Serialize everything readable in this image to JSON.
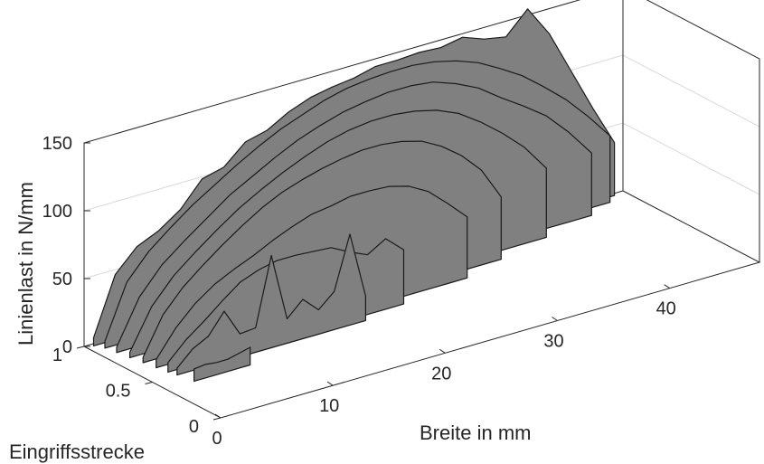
{
  "chart_data": {
    "type": "3d-ribbon",
    "xlabel": "Breite in mm",
    "ylabel": "Eingriffsstrecke",
    "zlabel": "Linienlast in N/mm",
    "x_ticks": [
      "0",
      "10",
      "20",
      "30",
      "40"
    ],
    "y_ticks": [
      "0",
      "0.5",
      "1"
    ],
    "z_ticks": [
      "0",
      "50",
      "100",
      "150"
    ],
    "xlim": [
      0,
      48
    ],
    "ylim": [
      0,
      1
    ],
    "zlim": [
      0,
      150
    ],
    "grid": "z-only",
    "colors": {
      "surface": "#808080",
      "edge": "#1a1a1a",
      "axes": "#262626",
      "grid": "#d9d9d9"
    },
    "series": [
      {
        "y": 0.4,
        "x_start": 2.5,
        "x_end": 7.5,
        "values": [
          9,
          10,
          9,
          9,
          11,
          13
        ]
      },
      {
        "y": 0.5,
        "x_start": 2.2,
        "x_end": 19.0,
        "values": [
          5,
          16,
          22,
          37,
          17,
          18,
          68,
          18,
          29,
          18,
          28,
          67,
          18
        ]
      },
      {
        "y": 0.55,
        "x_start": 2.0,
        "x_end": 23.0,
        "values": [
          7,
          20,
          30,
          41,
          51,
          56,
          59,
          59,
          58,
          57,
          50,
          44,
          52,
          40
        ]
      },
      {
        "y": 0.62,
        "x_start": 1.8,
        "x_end": 29.5,
        "values": [
          6,
          25,
          39,
          49,
          56,
          62,
          69,
          75,
          80,
          82,
          85,
          85,
          84,
          80,
          72,
          59,
          45
        ]
      },
      {
        "y": 0.7,
        "x_start": 1.6,
        "x_end": 33.5,
        "values": [
          4,
          31,
          47,
          59,
          70,
          80,
          89,
          96,
          101,
          105,
          108,
          110,
          110,
          108,
          104,
          96,
          85,
          70,
          46
        ]
      },
      {
        "y": 0.78,
        "x_start": 1.4,
        "x_end": 38.5,
        "values": [
          4,
          33,
          51,
          64,
          76,
          87,
          96,
          104,
          111,
          117,
          121,
          123,
          123,
          121,
          117,
          110,
          99,
          86,
          71,
          51
        ]
      },
      {
        "y": 0.86,
        "x_start": 1.2,
        "x_end": 43.5,
        "values": [
          4,
          36,
          55,
          68,
          80,
          92,
          101,
          110,
          118,
          124,
          129,
          132,
          134,
          134,
          132,
          126,
          118,
          106,
          95,
          83,
          66,
          46
        ]
      },
      {
        "y": 0.93,
        "x_start": 1.0,
        "x_end": 46.0,
        "values": [
          5,
          44,
          62,
          75,
          87,
          97,
          107,
          116,
          124,
          130,
          136,
          140,
          142,
          143,
          143,
          141,
          137,
          131,
          122,
          112,
          99,
          85,
          68,
          49
        ]
      },
      {
        "y": 0.98,
        "x_start": 0.6,
        "x_end": 47.0,
        "values": [
          6,
          48,
          64,
          71,
          82,
          100,
          104,
          118,
          122,
          131,
          137,
          140,
          142,
          146,
          146,
          147,
          146,
          149,
          143,
          140,
          156,
          133,
          101,
          69,
          39
        ]
      }
    ]
  }
}
